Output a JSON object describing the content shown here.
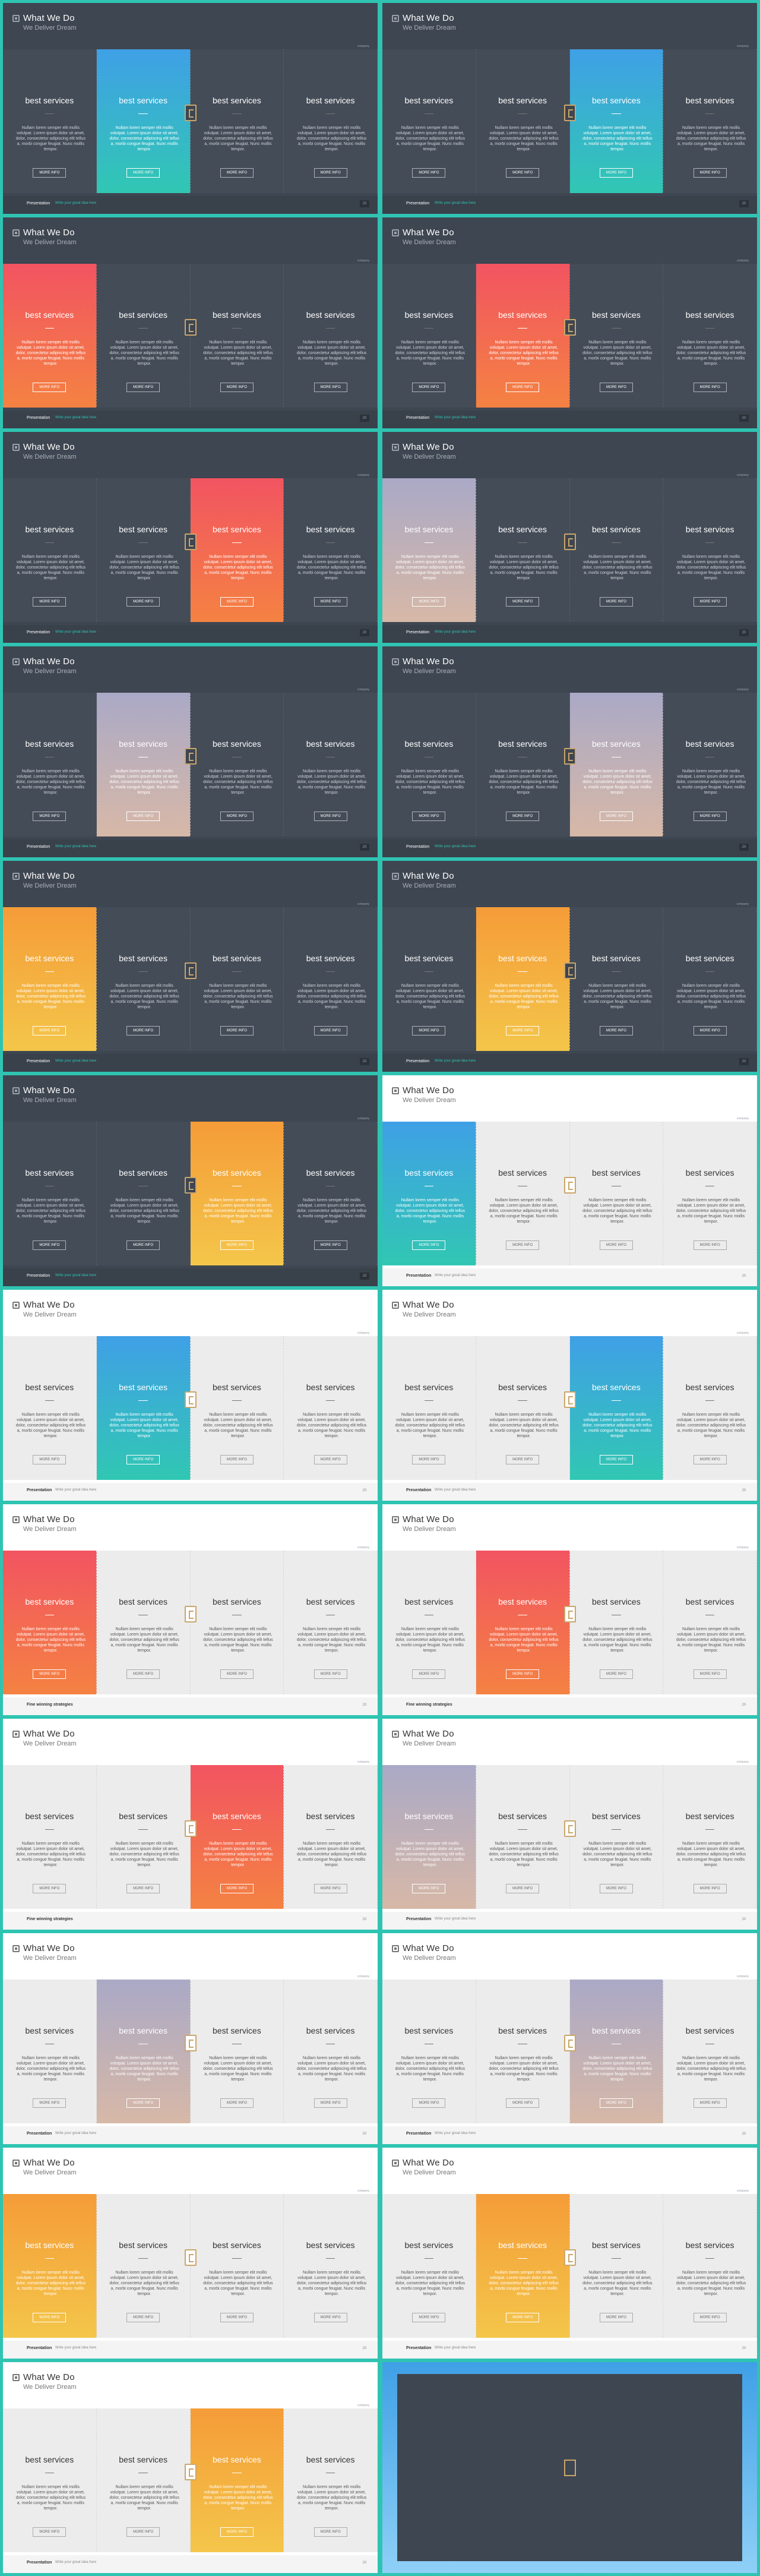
{
  "slide_title": "What We Do",
  "slide_subtitle": "We Deliver Dream",
  "corner_text": "company",
  "service_title": "best services",
  "service_desc": "Nullam lorem semper elit mollis volutpat. Lorem ipsum dolor sit amet, dolor, consectetur adipiscing elit tellus a, morbi congue feugiat. Nunc mollis tempor.",
  "more_label": "MORE INFO",
  "footer_presentation": "Presentation",
  "footer_tagline": "Write your great idea here",
  "footer_strategies": "Fine winning strategies",
  "page_number": "20",
  "colors": {
    "teal_frame": "#2fc4b2",
    "dark_bg": "#3e4651",
    "blue_grad": "#3fa0e6",
    "red_grad": "#f25461",
    "purple_grad": "#aaa9c6",
    "orange_grad": "#f59c38"
  },
  "slides": [
    {
      "theme": "dark",
      "hl": 1,
      "grad": "blue",
      "footer": "presentation"
    },
    {
      "theme": "dark",
      "hl": 2,
      "grad": "blue",
      "footer": "presentation"
    },
    {
      "theme": "dark",
      "hl": 0,
      "grad": "red",
      "footer": "presentation"
    },
    {
      "theme": "dark",
      "hl": 1,
      "grad": "red",
      "footer": "presentation"
    },
    {
      "theme": "dark",
      "hl": 2,
      "grad": "red",
      "footer": "presentation"
    },
    {
      "theme": "dark",
      "hl": 0,
      "grad": "purple",
      "footer": "presentation"
    },
    {
      "theme": "dark",
      "hl": 1,
      "grad": "purple",
      "footer": "presentation"
    },
    {
      "theme": "dark",
      "hl": 2,
      "grad": "purple",
      "footer": "presentation"
    },
    {
      "theme": "dark",
      "hl": 0,
      "grad": "orange",
      "footer": "presentation"
    },
    {
      "theme": "dark",
      "hl": 1,
      "grad": "orange",
      "footer": "presentation"
    },
    {
      "theme": "dark",
      "hl": 2,
      "grad": "orange",
      "footer": "presentation"
    },
    {
      "theme": "light",
      "hl": 0,
      "grad": "blue",
      "footer": "presentation"
    },
    {
      "theme": "light",
      "hl": 1,
      "grad": "blue",
      "footer": "presentation"
    },
    {
      "theme": "light",
      "hl": 2,
      "grad": "blue",
      "footer": "presentation"
    },
    {
      "theme": "light",
      "hl": 0,
      "grad": "red",
      "footer": "strategies"
    },
    {
      "theme": "light",
      "hl": 1,
      "grad": "red",
      "footer": "strategies"
    },
    {
      "theme": "light",
      "hl": 2,
      "grad": "red",
      "footer": "strategies"
    },
    {
      "theme": "light",
      "hl": 0,
      "grad": "purple",
      "footer": "presentation"
    },
    {
      "theme": "light",
      "hl": 1,
      "grad": "purple",
      "footer": "presentation"
    },
    {
      "theme": "light",
      "hl": 2,
      "grad": "purple",
      "footer": "presentation"
    },
    {
      "theme": "light",
      "hl": 0,
      "grad": "orange",
      "footer": "presentation"
    },
    {
      "theme": "light",
      "hl": 1,
      "grad": "orange",
      "footer": "presentation"
    },
    {
      "theme": "light",
      "hl": 2,
      "grad": "orange",
      "footer": "presentation"
    },
    {
      "theme": "final",
      "hl": -1,
      "grad": "blue",
      "footer": "none"
    }
  ]
}
